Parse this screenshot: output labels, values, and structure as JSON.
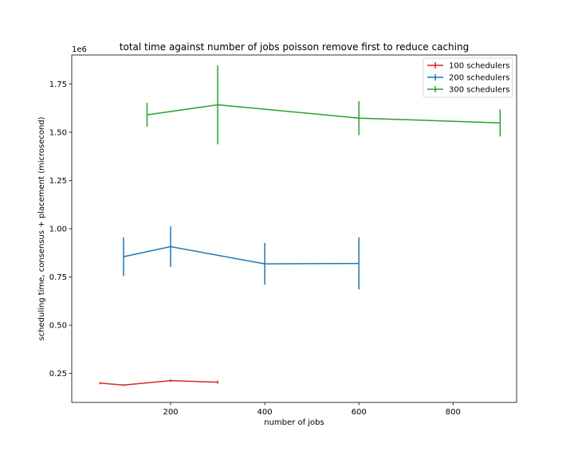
{
  "chart_data": {
    "type": "line",
    "title": "total time against number of jobs poisson remove first to reduce caching",
    "xlabel": "number of jobs",
    "ylabel": "scheduling time, consensus + placement (microsecond)",
    "y_scale_label": "1e6",
    "xlim": [
      -10,
      935
    ],
    "ylim": [
      100000,
      1900000
    ],
    "x_ticks": [
      200,
      400,
      600,
      800
    ],
    "x_tick_labels": [
      "200",
      "400",
      "600",
      "800"
    ],
    "y_ticks": [
      250000,
      500000,
      750000,
      1000000,
      1250000,
      1500000,
      1750000
    ],
    "y_tick_labels": [
      "0.25",
      "0.50",
      "0.75",
      "1.00",
      "1.25",
      "1.50",
      "1.75"
    ],
    "grid": false,
    "legend_position": "top-right",
    "series": [
      {
        "name": "100 schedulers",
        "color": "#d62728",
        "x": [
          50,
          100,
          200,
          300
        ],
        "y": [
          200000,
          190000,
          213000,
          205000
        ],
        "err": [
          6000,
          4000,
          6000,
          8000
        ]
      },
      {
        "name": "200 schedulers",
        "color": "#1f77b4",
        "x": [
          100,
          200,
          400,
          600
        ],
        "y": [
          855000,
          907000,
          818000,
          820000
        ],
        "err": [
          100000,
          105000,
          108000,
          135000
        ]
      },
      {
        "name": "300 schedulers",
        "color": "#2ca02c",
        "x": [
          150,
          300,
          600,
          900
        ],
        "y": [
          1590000,
          1642000,
          1573000,
          1548000
        ],
        "err": [
          62000,
          205000,
          88000,
          70000
        ]
      }
    ]
  }
}
